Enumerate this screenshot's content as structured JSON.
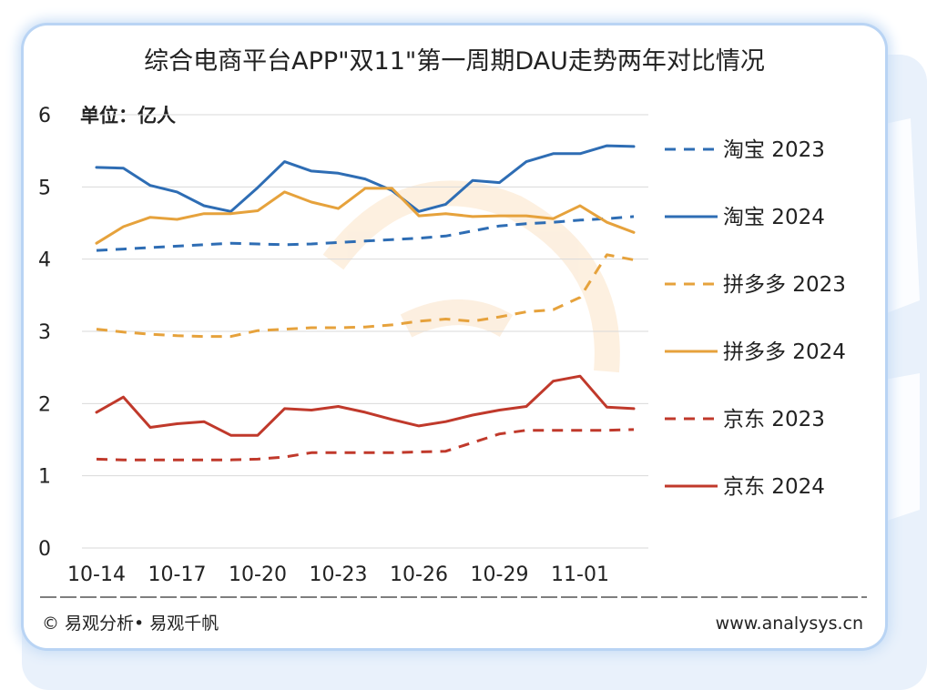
{
  "chart_data": {
    "type": "line",
    "title": "综合电商平台APP\"双11\"第一周期DAU走势两年对比情况",
    "unit_label": "单位：亿人",
    "ylim": [
      0,
      6
    ],
    "y_ticks": [
      "0",
      "1",
      "2",
      "3",
      "4",
      "5",
      "6"
    ],
    "x_ticks": [
      "10-14",
      "10-17",
      "10-20",
      "10-23",
      "10-26",
      "10-29",
      "11-01"
    ],
    "x": [
      "10-14",
      "10-15",
      "10-16",
      "10-17",
      "10-18",
      "10-19",
      "10-20",
      "10-21",
      "10-22",
      "10-23",
      "10-24",
      "10-25",
      "10-26",
      "10-27",
      "10-28",
      "10-29",
      "10-30",
      "10-31",
      "11-01",
      "11-02",
      "11-03"
    ],
    "grid": true,
    "legend_position": "right",
    "series": [
      {
        "name": "淘宝 2023",
        "color": "#2e6db4",
        "dashed": true,
        "values": [
          4.12,
          4.14,
          4.16,
          4.18,
          4.2,
          4.22,
          4.21,
          4.2,
          4.21,
          4.23,
          4.25,
          4.27,
          4.29,
          4.32,
          4.39,
          4.46,
          4.49,
          4.51,
          4.54,
          4.56,
          4.59
        ]
      },
      {
        "name": "淘宝 2024",
        "color": "#2e6db4",
        "dashed": false,
        "values": [
          5.27,
          5.26,
          5.02,
          4.93,
          4.74,
          4.66,
          4.99,
          5.35,
          5.22,
          5.19,
          5.11,
          4.95,
          4.66,
          4.76,
          5.09,
          5.06,
          5.35,
          5.46,
          5.46,
          5.57,
          5.56
        ]
      },
      {
        "name": "拼多多 2023",
        "color": "#e6a23c",
        "dashed": true,
        "values": [
          3.03,
          2.99,
          2.96,
          2.94,
          2.93,
          2.93,
          3.01,
          3.03,
          3.05,
          3.05,
          3.06,
          3.09,
          3.14,
          3.17,
          3.14,
          3.2,
          3.27,
          3.3,
          3.47,
          4.06,
          3.99
        ]
      },
      {
        "name": "拼多多 2024",
        "color": "#e6a23c",
        "dashed": false,
        "values": [
          4.22,
          4.45,
          4.58,
          4.55,
          4.63,
          4.63,
          4.67,
          4.93,
          4.79,
          4.7,
          4.98,
          4.98,
          4.6,
          4.63,
          4.59,
          4.6,
          4.6,
          4.56,
          4.74,
          4.51,
          4.37
        ]
      },
      {
        "name": "京东 2023",
        "color": "#c0392b",
        "dashed": true,
        "values": [
          1.23,
          1.22,
          1.22,
          1.22,
          1.22,
          1.22,
          1.23,
          1.26,
          1.32,
          1.32,
          1.32,
          1.32,
          1.33,
          1.34,
          1.46,
          1.58,
          1.63,
          1.63,
          1.63,
          1.63,
          1.64
        ]
      },
      {
        "name": "京东 2024",
        "color": "#c0392b",
        "dashed": false,
        "values": [
          1.88,
          2.09,
          1.67,
          1.72,
          1.75,
          1.56,
          1.56,
          1.93,
          1.91,
          1.96,
          1.88,
          1.78,
          1.69,
          1.75,
          1.84,
          1.91,
          1.96,
          2.31,
          2.38,
          1.95,
          1.93
        ]
      }
    ]
  },
  "footer": {
    "copyright": "© 易观分析• 易观千帆",
    "url": "www.analysys.cn"
  },
  "colors": {
    "card_border": "#b9d4f4",
    "background_panel": "#e9f1fb",
    "watermark": "#ffffff",
    "text": "#222222",
    "grid": "#d9d9d9"
  }
}
